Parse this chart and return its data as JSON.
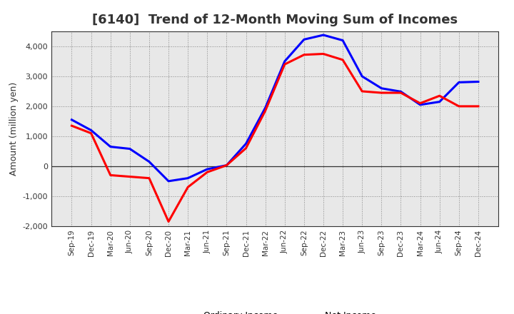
{
  "title": "[6140]  Trend of 12-Month Moving Sum of Incomes",
  "ylabel": "Amount (million yen)",
  "xlabels": [
    "Sep-19",
    "Dec-19",
    "Mar-20",
    "Jun-20",
    "Sep-20",
    "Dec-20",
    "Mar-21",
    "Jun-21",
    "Sep-21",
    "Dec-21",
    "Mar-22",
    "Jun-22",
    "Sep-22",
    "Dec-22",
    "Mar-23",
    "Jun-23",
    "Sep-23",
    "Dec-23",
    "Mar-24",
    "Jun-24",
    "Sep-24",
    "Dec-24"
  ],
  "ordinary_income": [
    1550,
    1200,
    650,
    580,
    150,
    -500,
    -400,
    -100,
    30,
    750,
    1950,
    3500,
    4230,
    4380,
    4200,
    3000,
    2600,
    2490,
    2050,
    2150,
    2800,
    2820
  ],
  "net_income": [
    1350,
    1100,
    -300,
    -350,
    -400,
    -1850,
    -700,
    -200,
    30,
    600,
    1850,
    3400,
    3720,
    3750,
    3550,
    2500,
    2450,
    2450,
    2100,
    2350,
    2000,
    2000
  ],
  "ordinary_color": "#0000ff",
  "net_color": "#ff0000",
  "ylim": [
    -2000,
    4500
  ],
  "yticks": [
    -2000,
    -1000,
    0,
    1000,
    2000,
    3000,
    4000
  ],
  "plot_bg_color": "#e8e8e8",
  "fig_bg_color": "#ffffff",
  "grid_color": "#888888",
  "line_width": 2.2,
  "title_color": "#333333",
  "title_fontsize": 13
}
